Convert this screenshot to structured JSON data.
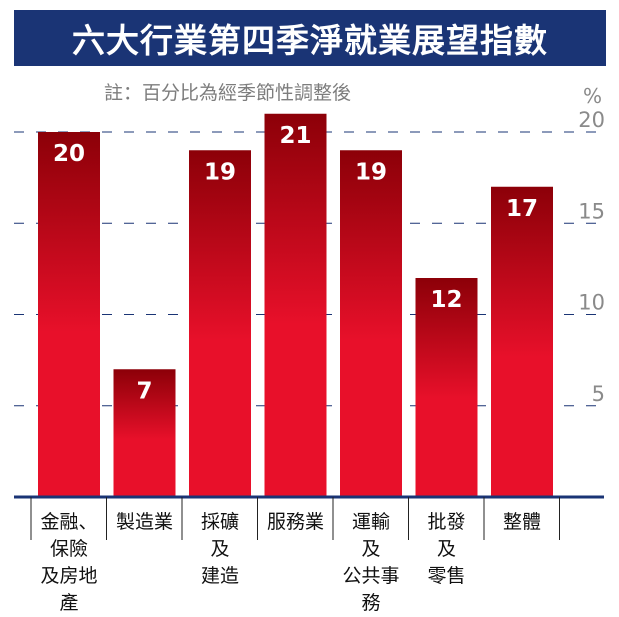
{
  "chart_data": {
    "type": "bar",
    "title": "六大行業第四季淨就業展望指數",
    "subtitle": "註：百分比為經季節性調整後",
    "ylabel": "%",
    "categories": [
      "金融、保險及房地產",
      "製造業",
      "採礦及建造",
      "服務業",
      "運輸及公共事務",
      "批發及零售",
      "整體"
    ],
    "category_lines": [
      [
        "金融、",
        "保險",
        "及房地產"
      ],
      [
        "製造業"
      ],
      [
        "採礦",
        "及",
        "建造"
      ],
      [
        "服務業"
      ],
      [
        "運輸",
        "及",
        "公共事務"
      ],
      [
        "批發",
        "及",
        "零售"
      ],
      [
        "整體"
      ]
    ],
    "values": [
      20,
      7,
      19,
      21,
      19,
      12,
      17
    ],
    "data_labels": [
      "20",
      "7",
      "19",
      "21",
      "19",
      "12",
      "17"
    ],
    "ylim": [
      0,
      21
    ],
    "yticks": [
      5,
      10,
      15,
      20
    ],
    "ytick_labels": [
      "5",
      "10",
      "15",
      "20"
    ],
    "grid": true,
    "colors": {
      "bar_top": "#8c0008",
      "bar_bottom": "#e8102a",
      "title_bg": "#1a3475",
      "axis": "#1a3475",
      "grid": "#1a3475"
    }
  }
}
